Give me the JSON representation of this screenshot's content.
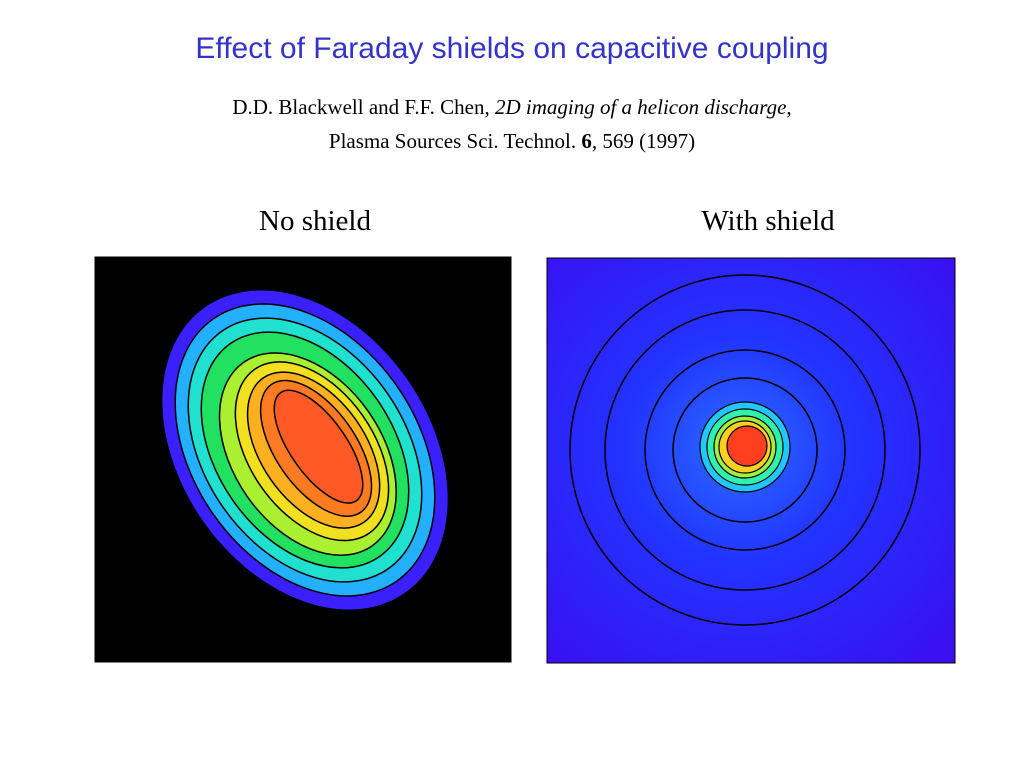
{
  "title": "Effect of Faraday shields on capacitive coupling",
  "citation": [
    [
      "D.D. Blackwell and F.F. Chen,",
      "2D imaging of a helicon discharge",
      ","
    ],
    [
      "Plasma Sources Sci. Technol.",
      "6",
      ", 569 (1997)"
    ]
  ],
  "panels": [
    {
      "label": "No shield"
    },
    {
      "label": "With shield"
    }
  ]
}
